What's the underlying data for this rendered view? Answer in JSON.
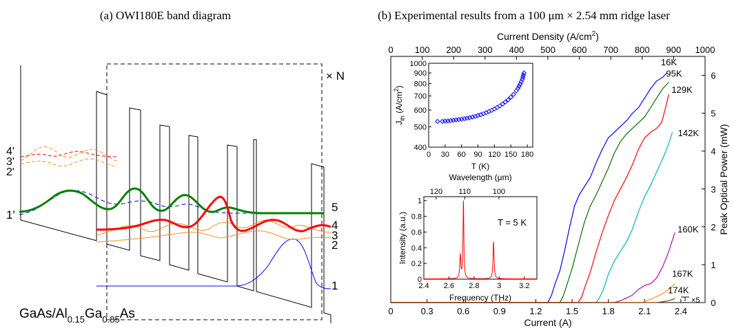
{
  "panel_a": {
    "title": "(a) OWI180E band diagram",
    "material_main": "GaAs/Al",
    "material_sub1": "0.15",
    "material_mid": "Ga",
    "material_sub2": "0.85",
    "material_end": "As",
    "period_label": "× N",
    "state_labels": [
      {
        "label": "5",
        "color": "#008000"
      },
      {
        "label": "4",
        "color": "#ff0000"
      },
      {
        "label": "3",
        "color": "#808080"
      },
      {
        "label": "2",
        "color": "#808080"
      },
      {
        "label": "1",
        "color": "#808080"
      },
      {
        "label": "1'",
        "color": "#808080"
      },
      {
        "label": "4'",
        "color": "#808080"
      },
      {
        "label": "3'",
        "color": "#808080"
      },
      {
        "label": "2'",
        "color": "#808080"
      }
    ],
    "colors": {
      "level5": "#008000",
      "level4": "#ff0000",
      "level23": "#ff8c1a",
      "level1": "#0000ff",
      "band": "#000000"
    }
  },
  "panel_b": {
    "title": "(b) Experimental results from a 100 μm × 2.54 mm ridge laser",
    "chart_data": [
      {
        "type": "line",
        "name": "main",
        "xlabel": "Current (A)",
        "x2label": "Current Density (A/cm",
        "x2label_sup": "2",
        "x2label_end": ")",
        "ylabel": "Peak Optical Power (mW)",
        "xlim": [
          0,
          2.6
        ],
        "x2lim": [
          0,
          1000
        ],
        "ylim": [
          0,
          6.5
        ],
        "xticks": [
          "0",
          "0.3",
          "0.6",
          "0.9",
          "1.2",
          "1.5",
          "1.8",
          "2.1",
          "2.4"
        ],
        "x2ticks": [
          "0",
          "100",
          "200",
          "300",
          "400",
          "500",
          "600",
          "700",
          "800",
          "900",
          "1000"
        ],
        "yticks": [
          "0",
          "1",
          "2",
          "3",
          "4",
          "5",
          "6"
        ],
        "annotation": "×5",
        "series": [
          {
            "name": "16K",
            "color": "#0000ff",
            "x": [
              1.3,
              1.33,
              1.36,
              1.4,
              1.44,
              1.48,
              1.52,
              1.56,
              1.6,
              1.65,
              1.7,
              1.75,
              1.8,
              1.85,
              1.9,
              1.95,
              2.0,
              2.05,
              2.1,
              2.15,
              2.2,
              2.25,
              2.28
            ],
            "y": [
              0,
              0.2,
              0.5,
              0.85,
              1.4,
              2.0,
              2.55,
              2.85,
              3.05,
              3.3,
              3.7,
              4.05,
              4.35,
              4.5,
              4.65,
              4.8,
              5.0,
              5.15,
              5.4,
              5.65,
              5.85,
              5.95,
              6.05
            ]
          },
          {
            "name": "95K",
            "color": "#007000",
            "x": [
              1.4,
              1.43,
              1.46,
              1.5,
              1.55,
              1.6,
              1.65,
              1.7,
              1.75,
              1.8,
              1.85,
              1.9,
              1.95,
              2.0,
              2.05,
              2.1,
              2.15,
              2.2,
              2.25,
              2.3
            ],
            "y": [
              0,
              0.2,
              0.5,
              0.9,
              1.5,
              2.1,
              2.55,
              2.85,
              3.2,
              3.55,
              3.95,
              4.25,
              4.45,
              4.6,
              4.75,
              4.9,
              5.15,
              5.4,
              5.65,
              5.82
            ]
          },
          {
            "name": "129K",
            "color": "#ff0000",
            "x": [
              1.55,
              1.58,
              1.6,
              1.65,
              1.7,
              1.75,
              1.8,
              1.85,
              1.9,
              1.95,
              2.0,
              2.05,
              2.1,
              2.15,
              2.2,
              2.24,
              2.27,
              2.3
            ],
            "y": [
              0,
              0.15,
              0.35,
              0.8,
              1.35,
              1.85,
              2.3,
              2.7,
              3.0,
              3.3,
              3.65,
              4.05,
              4.35,
              4.5,
              4.6,
              4.75,
              5.1,
              5.5
            ]
          },
          {
            "name": "142K",
            "color": "#00b4b4",
            "x": [
              1.7,
              1.73,
              1.76,
              1.8,
              1.85,
              1.9,
              1.95,
              2.0,
              2.05,
              2.1,
              2.15,
              2.2,
              2.25,
              2.3,
              2.33
            ],
            "y": [
              0,
              0.15,
              0.35,
              0.75,
              1.1,
              1.35,
              1.6,
              1.95,
              2.4,
              2.8,
              3.1,
              3.45,
              3.8,
              4.2,
              4.5
            ]
          },
          {
            "name": "160K",
            "color": "#c000c0",
            "x": [
              1.85,
              1.9,
              1.95,
              2.0,
              2.05,
              2.1,
              2.15,
              2.2,
              2.25,
              2.3,
              2.35
            ],
            "y": [
              0,
              0.05,
              0.12,
              0.2,
              0.35,
              0.45,
              0.5,
              0.65,
              0.95,
              1.35,
              1.85
            ]
          },
          {
            "name": "167K",
            "color": "#ff8c1a",
            "x": [
              2.08,
              2.12,
              2.16,
              2.2,
              2.24,
              2.28,
              2.32,
              2.35
            ],
            "y": [
              0,
              0.05,
              0.1,
              0.16,
              0.22,
              0.3,
              0.4,
              0.5
            ]
          },
          {
            "name": "174K",
            "color": "#804000",
            "x": [
              2.2,
              2.25,
              2.3,
              2.35
            ],
            "y": [
              0,
              0.02,
              0.05,
              0.1
            ]
          }
        ]
      },
      {
        "type": "scatter",
        "name": "inset-threshold",
        "xlabel": "T (K)",
        "ylabel": "J",
        "ylabel_sub": "th",
        "ylabel_end": " (A/cm",
        "ylabel_sup": "2",
        "ylabel_close": ")",
        "xlim": [
          0,
          190
        ],
        "ylim": [
          400,
          1000
        ],
        "log_y": true,
        "xticks": [
          "0",
          "30",
          "60",
          "90",
          "120",
          "150",
          "180"
        ],
        "yticks": [
          "400",
          "500",
          "600",
          "700",
          "800",
          "900",
          "1000"
        ],
        "color": "#0000ff",
        "x": [
          16,
          25,
          30,
          35,
          40,
          45,
          50,
          55,
          60,
          65,
          70,
          75,
          80,
          85,
          90,
          95,
          100,
          105,
          110,
          115,
          120,
          125,
          130,
          135,
          140,
          145,
          150,
          155,
          160,
          163,
          165,
          167,
          169,
          171,
          172,
          173,
          174
        ],
        "y": [
          530,
          530,
          532,
          533,
          535,
          537,
          539,
          541,
          543,
          546,
          549,
          552,
          556,
          560,
          565,
          570,
          576,
          583,
          590,
          598,
          607,
          617,
          628,
          641,
          655,
          671,
          690,
          712,
          740,
          760,
          778,
          797,
          817,
          840,
          860,
          880,
          900
        ]
      },
      {
        "type": "line",
        "name": "inset-spectrum",
        "xlabel": "Frequency (THz)",
        "x2label": "Wavelength (μm)",
        "ylabel": "Intensity (a.u.)",
        "annotation": "T = 5 K",
        "xlim": [
          2.4,
          3.3
        ],
        "ylim": [
          0,
          1.05
        ],
        "xticks": [
          "2.4",
          "2.6",
          "2.8",
          "3",
          "3.2"
        ],
        "x2ticks": [
          "120",
          "110",
          "100"
        ],
        "yticks": [
          "0",
          "0.2",
          "0.4",
          "0.6",
          "0.8",
          "1"
        ],
        "color": "#ff0000",
        "peaks": [
          {
            "x": 2.69,
            "y": 0.3,
            "w": 0.005
          },
          {
            "x": 2.715,
            "y": 1.0,
            "w": 0.004
          },
          {
            "x": 2.955,
            "y": 0.47,
            "w": 0.005
          }
        ]
      }
    ]
  }
}
